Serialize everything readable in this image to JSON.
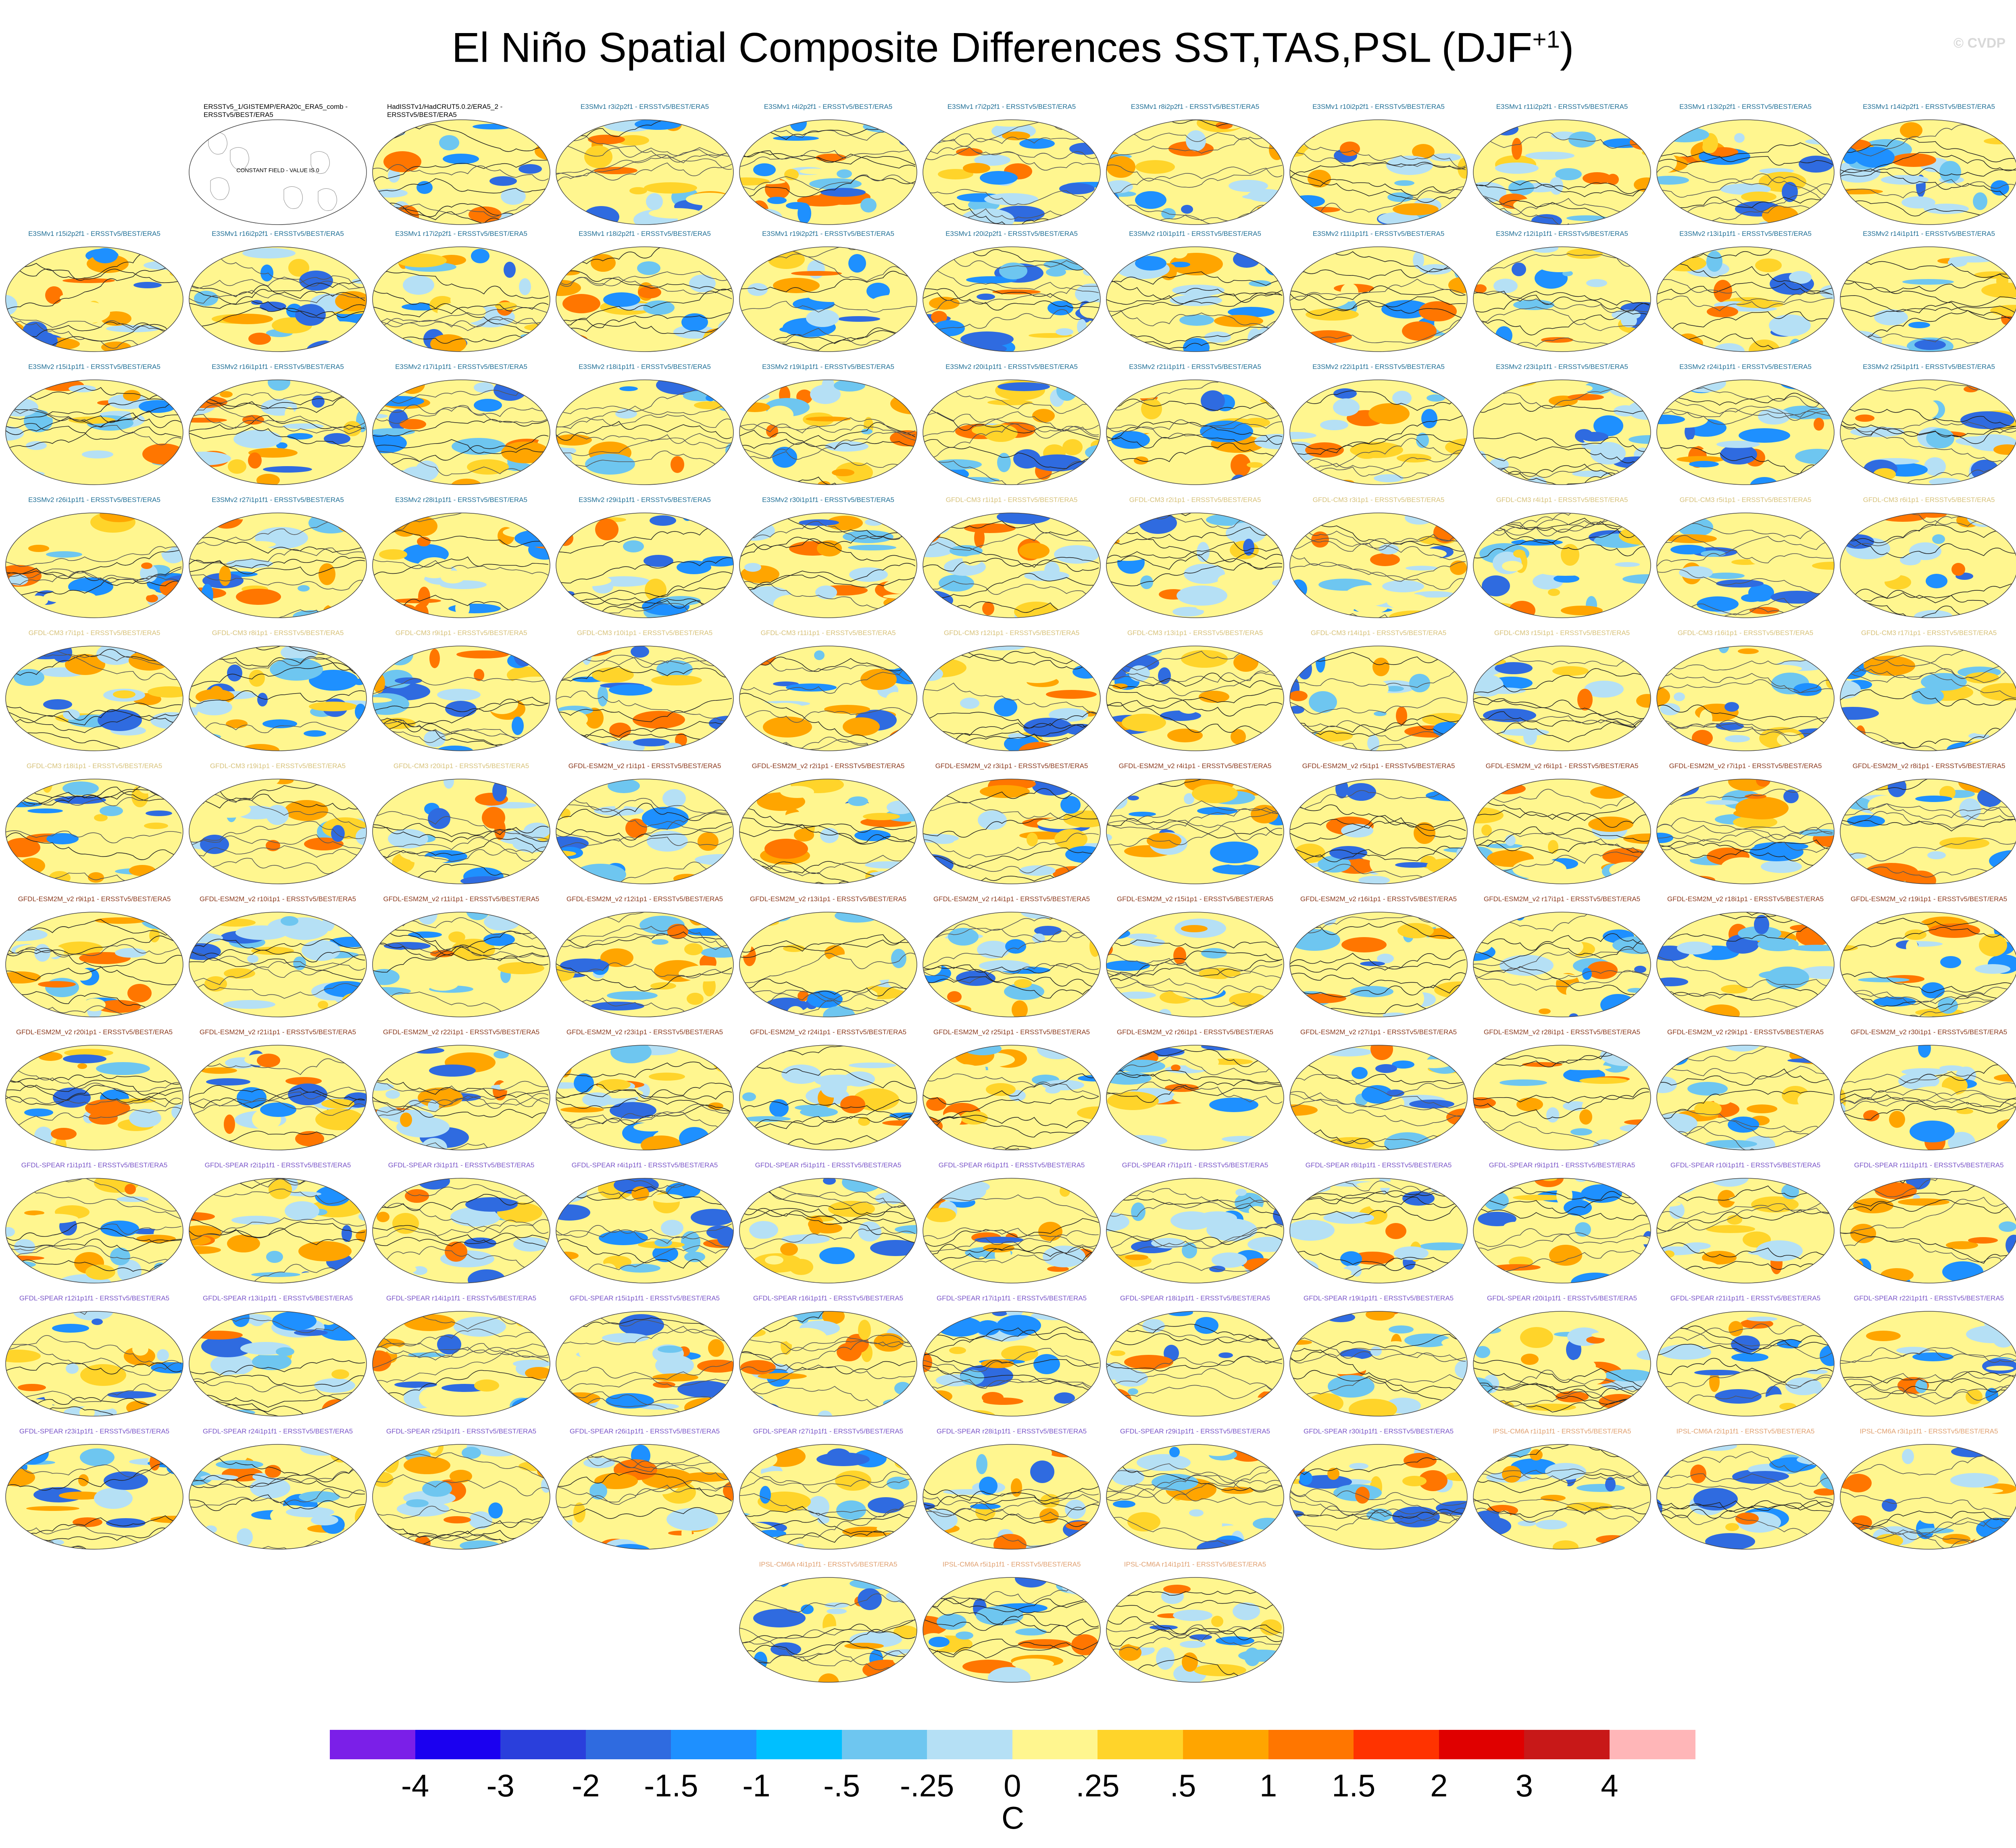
{
  "title": {
    "main": "El Niño Spatial Composite Differences SST,TAS,PSL (DJF",
    "superscript": "+1",
    "close": ")"
  },
  "watermark": "© CVDP",
  "units": "C",
  "colorbar": {
    "colors": [
      "#7b1fe8",
      "#1b00f0",
      "#2a3fdc",
      "#2f6be0",
      "#1e90ff",
      "#00bfff",
      "#6ec6f0",
      "#b5e0f5",
      "#fff68f",
      "#ffd42a",
      "#ffa500",
      "#ff7600",
      "#ff3300",
      "#e00000",
      "#c81818",
      "#ffb6b8"
    ],
    "labels": [
      "-4",
      "-3",
      "-2",
      "-1.5",
      "-1",
      "-.5",
      "-.25",
      "0",
      ".25",
      ".5",
      "1",
      "1.5",
      "2",
      "3",
      "4"
    ]
  },
  "observations": [
    {
      "label": "ERSSTv5_1/GISTEMP/ERA20c_ERA5_comb - ERSSTv5/BEST/ERA5",
      "note": "CONSTANT FIELD - VALUE IS 0"
    },
    {
      "label": "HadISSTv1/HadCRUT5.0.2/ERA5_2 - ERSSTv5/BEST/ERA5",
      "note": ""
    }
  ],
  "label_colors": {
    "E3SM": "#1f6f96",
    "GFDL-CM3": "#d7c27a",
    "GFDL-ESM2M": "#8b3a1e",
    "GFDL-SPEAR": "#7a55c8",
    "IPSL-CM6A": "#e0a070"
  },
  "panels": [
    {
      "label": "E3SMv1 r3i2p2f1 - ERSSTv5/BEST/ERA5",
      "family": "E3SM"
    },
    {
      "label": "E3SMv1 r4i2p2f1 - ERSSTv5/BEST/ERA5",
      "family": "E3SM"
    },
    {
      "label": "E3SMv1 r7i2p2f1 - ERSSTv5/BEST/ERA5",
      "family": "E3SM"
    },
    {
      "label": "E3SMv1 r8i2p2f1 - ERSSTv5/BEST/ERA5",
      "family": "E3SM"
    },
    {
      "label": "E3SMv1 r10i2p2f1 - ERSSTv5/BEST/ERA5",
      "family": "E3SM"
    },
    {
      "label": "E3SMv1 r11i2p2f1 - ERSSTv5/BEST/ERA5",
      "family": "E3SM"
    },
    {
      "label": "E3SMv1 r13i2p2f1 - ERSSTv5/BEST/ERA5",
      "family": "E3SM"
    },
    {
      "label": "E3SMv1 r14i2p2f1 - ERSSTv5/BEST/ERA5",
      "family": "E3SM"
    },
    {
      "label": "E3SMv1 r15i2p2f1 - ERSSTv5/BEST/ERA5",
      "family": "E3SM"
    },
    {
      "label": "E3SMv1 r16i2p2f1 - ERSSTv5/BEST/ERA5",
      "family": "E3SM"
    },
    {
      "label": "E3SMv1 r17i2p2f1 - ERSSTv5/BEST/ERA5",
      "family": "E3SM"
    },
    {
      "label": "E3SMv1 r18i2p2f1 - ERSSTv5/BEST/ERA5",
      "family": "E3SM"
    },
    {
      "label": "E3SMv1 r19i2p2f1 - ERSSTv5/BEST/ERA5",
      "family": "E3SM"
    },
    {
      "label": "E3SMv1 r20i2p2f1 - ERSSTv5/BEST/ERA5",
      "family": "E3SM"
    },
    {
      "label": "E3SMv2 r10i1p1f1 - ERSSTv5/BEST/ERA5",
      "family": "E3SM"
    },
    {
      "label": "E3SMv2 r11i1p1f1 - ERSSTv5/BEST/ERA5",
      "family": "E3SM"
    },
    {
      "label": "E3SMv2 r12i1p1f1 - ERSSTv5/BEST/ERA5",
      "family": "E3SM"
    },
    {
      "label": "E3SMv2 r13i1p1f1 - ERSSTv5/BEST/ERA5",
      "family": "E3SM"
    },
    {
      "label": "E3SMv2 r14i1p1f1 - ERSSTv5/BEST/ERA5",
      "family": "E3SM"
    },
    {
      "label": "E3SMv2 r15i1p1f1 - ERSSTv5/BEST/ERA5",
      "family": "E3SM"
    },
    {
      "label": "E3SMv2 r16i1p1f1 - ERSSTv5/BEST/ERA5",
      "family": "E3SM"
    },
    {
      "label": "E3SMv2 r17i1p1f1 - ERSSTv5/BEST/ERA5",
      "family": "E3SM"
    },
    {
      "label": "E3SMv2 r18i1p1f1 - ERSSTv5/BEST/ERA5",
      "family": "E3SM"
    },
    {
      "label": "E3SMv2 r19i1p1f1 - ERSSTv5/BEST/ERA5",
      "family": "E3SM"
    },
    {
      "label": "E3SMv2 r20i1p1f1 - ERSSTv5/BEST/ERA5",
      "family": "E3SM"
    },
    {
      "label": "E3SMv2 r21i1p1f1 - ERSSTv5/BEST/ERA5",
      "family": "E3SM"
    },
    {
      "label": "E3SMv2 r22i1p1f1 - ERSSTv5/BEST/ERA5",
      "family": "E3SM"
    },
    {
      "label": "E3SMv2 r23i1p1f1 - ERSSTv5/BEST/ERA5",
      "family": "E3SM"
    },
    {
      "label": "E3SMv2 r24i1p1f1 - ERSSTv5/BEST/ERA5",
      "family": "E3SM"
    },
    {
      "label": "E3SMv2 r25i1p1f1 - ERSSTv5/BEST/ERA5",
      "family": "E3SM"
    },
    {
      "label": "E3SMv2 r26i1p1f1 - ERSSTv5/BEST/ERA5",
      "family": "E3SM"
    },
    {
      "label": "E3SMv2 r27i1p1f1 - ERSSTv5/BEST/ERA5",
      "family": "E3SM"
    },
    {
      "label": "E3SMv2 r28i1p1f1 - ERSSTv5/BEST/ERA5",
      "family": "E3SM"
    },
    {
      "label": "E3SMv2 r29i1p1f1 - ERSSTv5/BEST/ERA5",
      "family": "E3SM"
    },
    {
      "label": "E3SMv2 r30i1p1f1 - ERSSTv5/BEST/ERA5",
      "family": "E3SM"
    },
    {
      "label": "GFDL-CM3 r1i1p1 - ERSSTv5/BEST/ERA5",
      "family": "GFDL-CM3"
    },
    {
      "label": "GFDL-CM3 r2i1p1 - ERSSTv5/BEST/ERA5",
      "family": "GFDL-CM3"
    },
    {
      "label": "GFDL-CM3 r3i1p1 - ERSSTv5/BEST/ERA5",
      "family": "GFDL-CM3"
    },
    {
      "label": "GFDL-CM3 r4i1p1 - ERSSTv5/BEST/ERA5",
      "family": "GFDL-CM3"
    },
    {
      "label": "GFDL-CM3 r5i1p1 - ERSSTv5/BEST/ERA5",
      "family": "GFDL-CM3"
    },
    {
      "label": "GFDL-CM3 r6i1p1 - ERSSTv5/BEST/ERA5",
      "family": "GFDL-CM3"
    },
    {
      "label": "GFDL-CM3 r7i1p1 - ERSSTv5/BEST/ERA5",
      "family": "GFDL-CM3"
    },
    {
      "label": "GFDL-CM3 r8i1p1 - ERSSTv5/BEST/ERA5",
      "family": "GFDL-CM3"
    },
    {
      "label": "GFDL-CM3 r9i1p1 - ERSSTv5/BEST/ERA5",
      "family": "GFDL-CM3"
    },
    {
      "label": "GFDL-CM3 r10i1p1 - ERSSTv5/BEST/ERA5",
      "family": "GFDL-CM3"
    },
    {
      "label": "GFDL-CM3 r11i1p1 - ERSSTv5/BEST/ERA5",
      "family": "GFDL-CM3"
    },
    {
      "label": "GFDL-CM3 r12i1p1 - ERSSTv5/BEST/ERA5",
      "family": "GFDL-CM3"
    },
    {
      "label": "GFDL-CM3 r13i1p1 - ERSSTv5/BEST/ERA5",
      "family": "GFDL-CM3"
    },
    {
      "label": "GFDL-CM3 r14i1p1 - ERSSTv5/BEST/ERA5",
      "family": "GFDL-CM3"
    },
    {
      "label": "GFDL-CM3 r15i1p1 - ERSSTv5/BEST/ERA5",
      "family": "GFDL-CM3"
    },
    {
      "label": "GFDL-CM3 r16i1p1 - ERSSTv5/BEST/ERA5",
      "family": "GFDL-CM3"
    },
    {
      "label": "GFDL-CM3 r17i1p1 - ERSSTv5/BEST/ERA5",
      "family": "GFDL-CM3"
    },
    {
      "label": "GFDL-CM3 r18i1p1 - ERSSTv5/BEST/ERA5",
      "family": "GFDL-CM3"
    },
    {
      "label": "GFDL-CM3 r19i1p1 - ERSSTv5/BEST/ERA5",
      "family": "GFDL-CM3"
    },
    {
      "label": "GFDL-CM3 r20i1p1 - ERSSTv5/BEST/ERA5",
      "family": "GFDL-CM3"
    },
    {
      "label": "GFDL-ESM2M_v2 r1i1p1 - ERSSTv5/BEST/ERA5",
      "family": "GFDL-ESM2M"
    },
    {
      "label": "GFDL-ESM2M_v2 r2i1p1 - ERSSTv5/BEST/ERA5",
      "family": "GFDL-ESM2M"
    },
    {
      "label": "GFDL-ESM2M_v2 r3i1p1 - ERSSTv5/BEST/ERA5",
      "family": "GFDL-ESM2M"
    },
    {
      "label": "GFDL-ESM2M_v2 r4i1p1 - ERSSTv5/BEST/ERA5",
      "family": "GFDL-ESM2M"
    },
    {
      "label": "GFDL-ESM2M_v2 r5i1p1 - ERSSTv5/BEST/ERA5",
      "family": "GFDL-ESM2M"
    },
    {
      "label": "GFDL-ESM2M_v2 r6i1p1 - ERSSTv5/BEST/ERA5",
      "family": "GFDL-ESM2M"
    },
    {
      "label": "GFDL-ESM2M_v2 r7i1p1 - ERSSTv5/BEST/ERA5",
      "family": "GFDL-ESM2M"
    },
    {
      "label": "GFDL-ESM2M_v2 r8i1p1 - ERSSTv5/BEST/ERA5",
      "family": "GFDL-ESM2M"
    },
    {
      "label": "GFDL-ESM2M_v2 r9i1p1 - ERSSTv5/BEST/ERA5",
      "family": "GFDL-ESM2M"
    },
    {
      "label": "GFDL-ESM2M_v2 r10i1p1 - ERSSTv5/BEST/ERA5",
      "family": "GFDL-ESM2M"
    },
    {
      "label": "GFDL-ESM2M_v2 r11i1p1 - ERSSTv5/BEST/ERA5",
      "family": "GFDL-ESM2M"
    },
    {
      "label": "GFDL-ESM2M_v2 r12i1p1 - ERSSTv5/BEST/ERA5",
      "family": "GFDL-ESM2M"
    },
    {
      "label": "GFDL-ESM2M_v2 r13i1p1 - ERSSTv5/BEST/ERA5",
      "family": "GFDL-ESM2M"
    },
    {
      "label": "GFDL-ESM2M_v2 r14i1p1 - ERSSTv5/BEST/ERA5",
      "family": "GFDL-ESM2M"
    },
    {
      "label": "GFDL-ESM2M_v2 r15i1p1 - ERSSTv5/BEST/ERA5",
      "family": "GFDL-ESM2M"
    },
    {
      "label": "GFDL-ESM2M_v2 r16i1p1 - ERSSTv5/BEST/ERA5",
      "family": "GFDL-ESM2M"
    },
    {
      "label": "GFDL-ESM2M_v2 r17i1p1 - ERSSTv5/BEST/ERA5",
      "family": "GFDL-ESM2M"
    },
    {
      "label": "GFDL-ESM2M_v2 r18i1p1 - ERSSTv5/BEST/ERA5",
      "family": "GFDL-ESM2M"
    },
    {
      "label": "GFDL-ESM2M_v2 r19i1p1 - ERSSTv5/BEST/ERA5",
      "family": "GFDL-ESM2M"
    },
    {
      "label": "GFDL-ESM2M_v2 r20i1p1 - ERSSTv5/BEST/ERA5",
      "family": "GFDL-ESM2M"
    },
    {
      "label": "GFDL-ESM2M_v2 r21i1p1 - ERSSTv5/BEST/ERA5",
      "family": "GFDL-ESM2M"
    },
    {
      "label": "GFDL-ESM2M_v2 r22i1p1 - ERSSTv5/BEST/ERA5",
      "family": "GFDL-ESM2M"
    },
    {
      "label": "GFDL-ESM2M_v2 r23i1p1 - ERSSTv5/BEST/ERA5",
      "family": "GFDL-ESM2M"
    },
    {
      "label": "GFDL-ESM2M_v2 r24i1p1 - ERSSTv5/BEST/ERA5",
      "family": "GFDL-ESM2M"
    },
    {
      "label": "GFDL-ESM2M_v2 r25i1p1 - ERSSTv5/BEST/ERA5",
      "family": "GFDL-ESM2M"
    },
    {
      "label": "GFDL-ESM2M_v2 r26i1p1 - ERSSTv5/BEST/ERA5",
      "family": "GFDL-ESM2M"
    },
    {
      "label": "GFDL-ESM2M_v2 r27i1p1 - ERSSTv5/BEST/ERA5",
      "family": "GFDL-ESM2M"
    },
    {
      "label": "GFDL-ESM2M_v2 r28i1p1 - ERSSTv5/BEST/ERA5",
      "family": "GFDL-ESM2M"
    },
    {
      "label": "GFDL-ESM2M_v2 r29i1p1 - ERSSTv5/BEST/ERA5",
      "family": "GFDL-ESM2M"
    },
    {
      "label": "GFDL-ESM2M_v2 r30i1p1 - ERSSTv5/BEST/ERA5",
      "family": "GFDL-ESM2M"
    },
    {
      "label": "GFDL-SPEAR r1i1p1f1 - ERSSTv5/BEST/ERA5",
      "family": "GFDL-SPEAR"
    },
    {
      "label": "GFDL-SPEAR r2i1p1f1 - ERSSTv5/BEST/ERA5",
      "family": "GFDL-SPEAR"
    },
    {
      "label": "GFDL-SPEAR r3i1p1f1 - ERSSTv5/BEST/ERA5",
      "family": "GFDL-SPEAR"
    },
    {
      "label": "GFDL-SPEAR r4i1p1f1 - ERSSTv5/BEST/ERA5",
      "family": "GFDL-SPEAR"
    },
    {
      "label": "GFDL-SPEAR r5i1p1f1 - ERSSTv5/BEST/ERA5",
      "family": "GFDL-SPEAR"
    },
    {
      "label": "GFDL-SPEAR r6i1p1f1 - ERSSTv5/BEST/ERA5",
      "family": "GFDL-SPEAR"
    },
    {
      "label": "GFDL-SPEAR r7i1p1f1 - ERSSTv5/BEST/ERA5",
      "family": "GFDL-SPEAR"
    },
    {
      "label": "GFDL-SPEAR r8i1p1f1 - ERSSTv5/BEST/ERA5",
      "family": "GFDL-SPEAR"
    },
    {
      "label": "GFDL-SPEAR r9i1p1f1 - ERSSTv5/BEST/ERA5",
      "family": "GFDL-SPEAR"
    },
    {
      "label": "GFDL-SPEAR r10i1p1f1 - ERSSTv5/BEST/ERA5",
      "family": "GFDL-SPEAR"
    },
    {
      "label": "GFDL-SPEAR r11i1p1f1 - ERSSTv5/BEST/ERA5",
      "family": "GFDL-SPEAR"
    },
    {
      "label": "GFDL-SPEAR r12i1p1f1 - ERSSTv5/BEST/ERA5",
      "family": "GFDL-SPEAR"
    },
    {
      "label": "GFDL-SPEAR r13i1p1f1 - ERSSTv5/BEST/ERA5",
      "family": "GFDL-SPEAR"
    },
    {
      "label": "GFDL-SPEAR r14i1p1f1 - ERSSTv5/BEST/ERA5",
      "family": "GFDL-SPEAR"
    },
    {
      "label": "GFDL-SPEAR r15i1p1f1 - ERSSTv5/BEST/ERA5",
      "family": "GFDL-SPEAR"
    },
    {
      "label": "GFDL-SPEAR r16i1p1f1 - ERSSTv5/BEST/ERA5",
      "family": "GFDL-SPEAR"
    },
    {
      "label": "GFDL-SPEAR r17i1p1f1 - ERSSTv5/BEST/ERA5",
      "family": "GFDL-SPEAR"
    },
    {
      "label": "GFDL-SPEAR r18i1p1f1 - ERSSTv5/BEST/ERA5",
      "family": "GFDL-SPEAR"
    },
    {
      "label": "GFDL-SPEAR r19i1p1f1 - ERSSTv5/BEST/ERA5",
      "family": "GFDL-SPEAR"
    },
    {
      "label": "GFDL-SPEAR r20i1p1f1 - ERSSTv5/BEST/ERA5",
      "family": "GFDL-SPEAR"
    },
    {
      "label": "GFDL-SPEAR r21i1p1f1 - ERSSTv5/BEST/ERA5",
      "family": "GFDL-SPEAR"
    },
    {
      "label": "GFDL-SPEAR r22i1p1f1 - ERSSTv5/BEST/ERA5",
      "family": "GFDL-SPEAR"
    },
    {
      "label": "GFDL-SPEAR r23i1p1f1 - ERSSTv5/BEST/ERA5",
      "family": "GFDL-SPEAR"
    },
    {
      "label": "GFDL-SPEAR r24i1p1f1 - ERSSTv5/BEST/ERA5",
      "family": "GFDL-SPEAR"
    },
    {
      "label": "GFDL-SPEAR r25i1p1f1 - ERSSTv5/BEST/ERA5",
      "family": "GFDL-SPEAR"
    },
    {
      "label": "GFDL-SPEAR r26i1p1f1 - ERSSTv5/BEST/ERA5",
      "family": "GFDL-SPEAR"
    },
    {
      "label": "GFDL-SPEAR r27i1p1f1 - ERSSTv5/BEST/ERA5",
      "family": "GFDL-SPEAR"
    },
    {
      "label": "GFDL-SPEAR r28i1p1f1 - ERSSTv5/BEST/ERA5",
      "family": "GFDL-SPEAR"
    },
    {
      "label": "GFDL-SPEAR r29i1p1f1 - ERSSTv5/BEST/ERA5",
      "family": "GFDL-SPEAR"
    },
    {
      "label": "GFDL-SPEAR r30i1p1f1 - ERSSTv5/BEST/ERA5",
      "family": "GFDL-SPEAR"
    },
    {
      "label": "IPSL-CM6A r1i1p1f1 - ERSSTv5/BEST/ERA5",
      "family": "IPSL-CM6A"
    },
    {
      "label": "IPSL-CM6A r2i1p1f1 - ERSSTv5/BEST/ERA5",
      "family": "IPSL-CM6A"
    },
    {
      "label": "IPSL-CM6A r3i1p1f1 - ERSSTv5/BEST/ERA5",
      "family": "IPSL-CM6A"
    },
    {
      "label": "IPSL-CM6A r4i1p1f1 - ERSSTv5/BEST/ERA5",
      "family": "IPSL-CM6A"
    },
    {
      "label": "IPSL-CM6A r5i1p1f1 - ERSSTv5/BEST/ERA5",
      "family": "IPSL-CM6A"
    },
    {
      "label": "IPSL-CM6A r14i1p1f1 - ERSSTv5/BEST/ERA5",
      "family": "IPSL-CM6A"
    }
  ]
}
